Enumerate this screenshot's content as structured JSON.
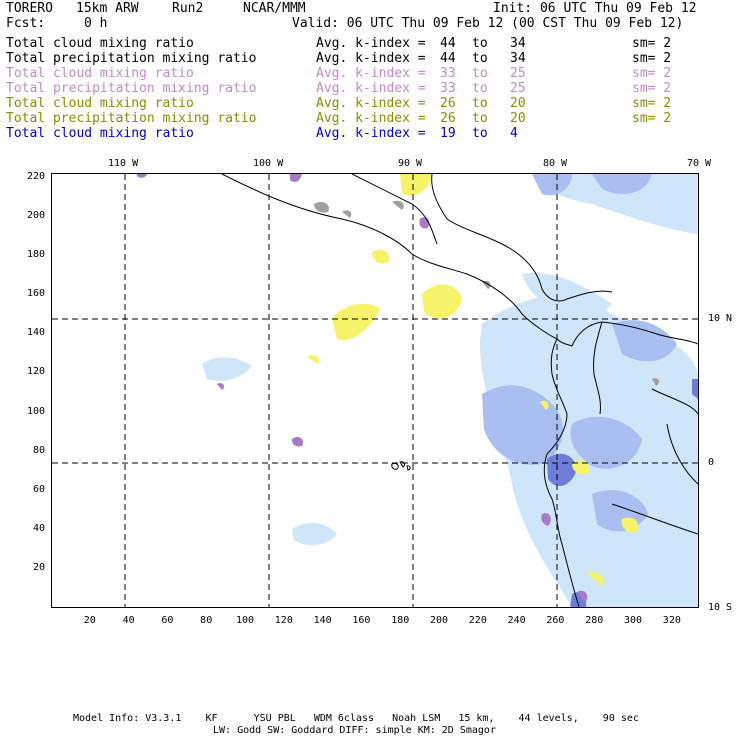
{
  "header": {
    "model": "TORERO",
    "resolution": "15km ARW",
    "run": "Run2",
    "org": "NCAR/MMM",
    "init": "Init: 06 UTC Thu 09 Feb 12",
    "fcst_label": "Fcst:",
    "fcst_value": "0 h",
    "valid": "Valid: 06 UTC Thu 09 Feb 12 (00 CST Thu 09 Feb 12)"
  },
  "legend": [
    {
      "field": "Total cloud mixing ratio",
      "kindex_label": "Avg. k-index =",
      "from": "44",
      "to_word": "to",
      "to": "34",
      "sm": "sm= 2",
      "color": "#000000"
    },
    {
      "field": "Total precipitation mixing ratio",
      "kindex_label": "Avg. k-index =",
      "from": "44",
      "to_word": "to",
      "to": "34",
      "sm": "sm= 2",
      "color": "#000000"
    },
    {
      "field": "Total cloud mixing ratio",
      "kindex_label": "Avg. k-index =",
      "from": "33",
      "to_word": "to",
      "to": "25",
      "sm": "sm= 2",
      "color": "#c48acb"
    },
    {
      "field": "Total precipitation mixing ratio",
      "kindex_label": "Avg. k-index =",
      "from": "33",
      "to_word": "to",
      "to": "25",
      "sm": "sm= 2",
      "color": "#c48acb"
    },
    {
      "field": "Total cloud mixing ratio",
      "kindex_label": "Avg. k-index =",
      "from": "26",
      "to_word": "to",
      "to": "20",
      "sm": "sm= 2",
      "color": "#8c8c00"
    },
    {
      "field": "Total precipitation mixing ratio",
      "kindex_label": "Avg. k-index =",
      "from": "26",
      "to_word": "to",
      "to": "20",
      "sm": "sm= 2",
      "color": "#8c8c00"
    },
    {
      "field": "Total cloud mixing ratio",
      "kindex_label": "Avg. k-index =",
      "from": "19",
      "to_word": "to",
      "to": "4",
      "sm": "",
      "color": "#0000cc"
    }
  ],
  "map": {
    "lon_labels": [
      "110 W",
      "100 W",
      "90 W",
      "80 W",
      "70 W"
    ],
    "lat_labels": [
      "10 N",
      "0",
      "10 S"
    ],
    "x_ticks": [
      "20",
      "40",
      "60",
      "80",
      "100",
      "120",
      "140",
      "160",
      "180",
      "200",
      "220",
      "240",
      "260",
      "280",
      "300",
      "320"
    ],
    "y_ticks": [
      "220",
      "200",
      "180",
      "160",
      "140",
      "120",
      "100",
      "80",
      "60",
      "40",
      "20"
    ]
  },
  "footer": {
    "line1": "Model Info: V3.3.1    KF      YSU PBL   WDM 6class   Noah LSM   15 km,    44 levels,    90 sec",
    "line2": "LW: Godd SW: Goddard DIFF: simple KM: 2D Smagor"
  }
}
